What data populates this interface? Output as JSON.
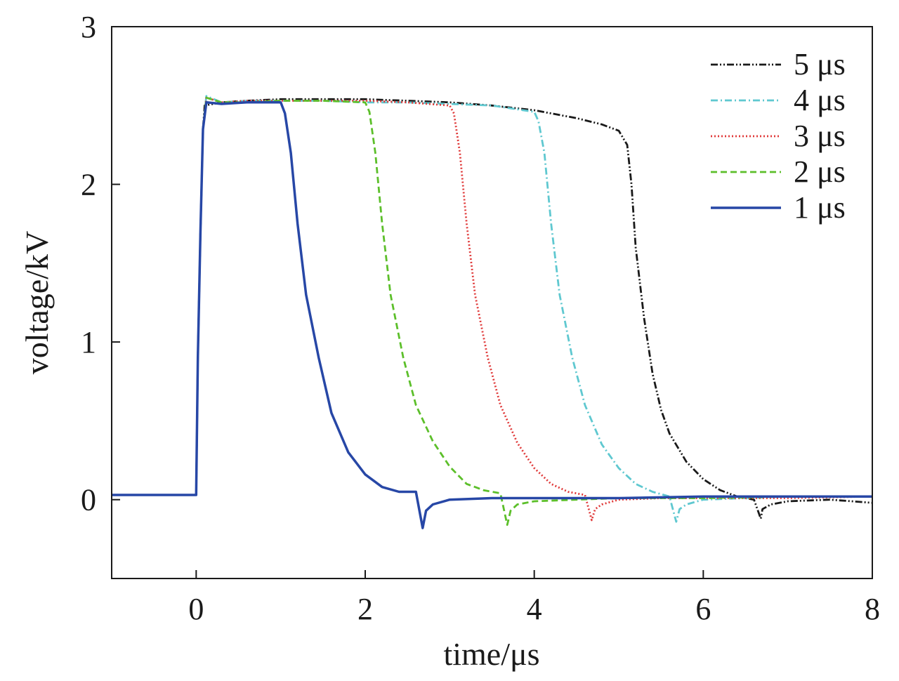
{
  "chart_data": {
    "type": "line",
    "title": "",
    "xlabel": "time/μs",
    "ylabel": "voltage/kV",
    "xlim": [
      -1,
      8
    ],
    "ylim": [
      -0.5,
      3
    ],
    "xticks": [
      "0",
      "2",
      "4",
      "6",
      "8"
    ],
    "xtick_values": [
      0,
      2,
      4,
      6,
      8
    ],
    "yticks": [
      "0",
      "1",
      "2",
      "3"
    ],
    "ytick_values": [
      0,
      1,
      2,
      3
    ],
    "grid": false,
    "legend_position": "top-right",
    "series": [
      {
        "name": "5 μs",
        "color": "#1a1a1a",
        "dash": "dash-dot-dot",
        "x": [
          -1,
          0,
          0.02,
          0.05,
          0.08,
          0.1,
          0.3,
          0.6,
          1,
          1.5,
          2,
          2.5,
          3,
          3.5,
          4,
          4.5,
          4.8,
          5,
          5.1,
          5.15,
          5.2,
          5.3,
          5.4,
          5.5,
          5.6,
          5.8,
          6,
          6.2,
          6.4,
          6.6,
          6.68,
          6.7,
          6.8,
          7,
          7.5,
          8
        ],
        "y": [
          0.03,
          0.03,
          0.9,
          1.7,
          2.35,
          2.5,
          2.52,
          2.53,
          2.54,
          2.54,
          2.54,
          2.53,
          2.52,
          2.5,
          2.47,
          2.42,
          2.38,
          2.34,
          2.25,
          2.0,
          1.6,
          1.15,
          0.8,
          0.57,
          0.42,
          0.24,
          0.13,
          0.06,
          0.02,
          0.0,
          -0.12,
          -0.06,
          -0.03,
          -0.01,
          0.0,
          -0.02
        ]
      },
      {
        "name": "4 μs",
        "color": "#5fc8d0",
        "dash": "dash-dot",
        "x": [
          -1,
          0,
          0.02,
          0.05,
          0.08,
          0.12,
          0.3,
          0.6,
          1,
          1.5,
          2,
          2.5,
          3,
          3.5,
          4,
          4.05,
          4.12,
          4.2,
          4.3,
          4.45,
          4.6,
          4.8,
          5,
          5.2,
          5.4,
          5.6,
          5.68,
          5.72,
          5.8,
          6,
          6.5,
          7,
          8
        ],
        "y": [
          0.03,
          0.03,
          0.9,
          1.7,
          2.35,
          2.56,
          2.52,
          2.53,
          2.53,
          2.53,
          2.52,
          2.52,
          2.51,
          2.5,
          2.46,
          2.4,
          2.2,
          1.75,
          1.3,
          0.9,
          0.6,
          0.35,
          0.2,
          0.1,
          0.05,
          0.02,
          -0.14,
          -0.06,
          -0.03,
          0.0,
          0.01,
          0.02,
          0.02
        ]
      },
      {
        "name": "3 μs",
        "color": "#e03a3a",
        "dash": "dotted",
        "x": [
          -1,
          0,
          0.02,
          0.05,
          0.08,
          0.12,
          0.3,
          0.6,
          1,
          1.5,
          2,
          2.5,
          3,
          3.05,
          3.12,
          3.2,
          3.3,
          3.45,
          3.6,
          3.8,
          4,
          4.2,
          4.4,
          4.6,
          4.68,
          4.72,
          4.8,
          5,
          5.5,
          6,
          7,
          8
        ],
        "y": [
          0.03,
          0.03,
          0.9,
          1.7,
          2.35,
          2.55,
          2.52,
          2.53,
          2.53,
          2.53,
          2.53,
          2.52,
          2.5,
          2.45,
          2.2,
          1.75,
          1.3,
          0.9,
          0.6,
          0.36,
          0.2,
          0.1,
          0.05,
          0.03,
          -0.13,
          -0.06,
          -0.03,
          0.0,
          0.01,
          0.01,
          0.01,
          0.02
        ]
      },
      {
        "name": "2 μs",
        "color": "#5cbf2a",
        "dash": "dashed",
        "x": [
          -1,
          0,
          0.02,
          0.05,
          0.08,
          0.12,
          0.3,
          0.6,
          1,
          1.5,
          2,
          2.05,
          2.12,
          2.2,
          2.3,
          2.45,
          2.6,
          2.8,
          3,
          3.2,
          3.4,
          3.6,
          3.68,
          3.72,
          3.8,
          4,
          4.5,
          5,
          6,
          7,
          8
        ],
        "y": [
          0.03,
          0.03,
          0.9,
          1.7,
          2.35,
          2.55,
          2.52,
          2.52,
          2.53,
          2.53,
          2.52,
          2.46,
          2.2,
          1.75,
          1.3,
          0.9,
          0.6,
          0.37,
          0.21,
          0.1,
          0.06,
          0.04,
          -0.16,
          -0.07,
          -0.03,
          -0.01,
          0.0,
          0.01,
          0.01,
          0.02,
          0.02
        ]
      },
      {
        "name": "1 μs",
        "color": "#2747a6",
        "dash": "solid",
        "x": [
          -1,
          0,
          0.02,
          0.05,
          0.08,
          0.12,
          0.3,
          0.6,
          1,
          1.05,
          1.12,
          1.2,
          1.3,
          1.45,
          1.6,
          1.8,
          2,
          2.2,
          2.4,
          2.6,
          2.68,
          2.72,
          2.8,
          3,
          3.5,
          4,
          5,
          6,
          7,
          8
        ],
        "y": [
          0.03,
          0.03,
          0.9,
          1.7,
          2.35,
          2.52,
          2.51,
          2.52,
          2.52,
          2.45,
          2.2,
          1.75,
          1.3,
          0.9,
          0.55,
          0.3,
          0.16,
          0.08,
          0.05,
          0.05,
          -0.18,
          -0.07,
          -0.03,
          0.0,
          0.01,
          0.01,
          0.01,
          0.02,
          0.02,
          0.02
        ]
      }
    ]
  }
}
